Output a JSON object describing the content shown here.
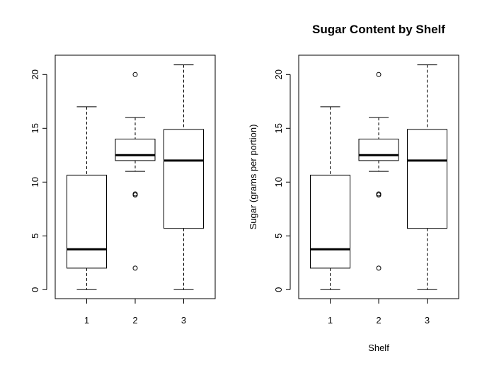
{
  "chart_data": [
    {
      "type": "boxplot",
      "title": "",
      "xlabel": "",
      "ylabel": "",
      "categories": [
        "1",
        "2",
        "3"
      ],
      "ylim": [
        0,
        21
      ],
      "yticks": [
        "0",
        "5",
        "10",
        "15",
        "20"
      ],
      "grid": false,
      "boxes": [
        {
          "min": 0,
          "q1": 2,
          "median": 3.75,
          "q3": 10.65,
          "max": 17,
          "outliers": []
        },
        {
          "min": 11,
          "q1": 12,
          "median": 12.5,
          "q3": 14,
          "max": 16,
          "outliers": [
            20,
            8.9,
            8.8,
            2
          ]
        },
        {
          "min": 0,
          "q1": 5.7,
          "median": 12,
          "q3": 14.9,
          "max": 20.9,
          "outliers": []
        }
      ]
    },
    {
      "type": "boxplot",
      "title": "Sugar Content by Shelf",
      "xlabel": "Shelf",
      "ylabel": "Sugar (grams per portion)",
      "categories": [
        "1",
        "2",
        "3"
      ],
      "ylim": [
        0,
        21
      ],
      "yticks": [
        "0",
        "5",
        "10",
        "15",
        "20"
      ],
      "grid": false,
      "boxes": [
        {
          "min": 0,
          "q1": 2,
          "median": 3.75,
          "q3": 10.65,
          "max": 17,
          "outliers": []
        },
        {
          "min": 11,
          "q1": 12,
          "median": 12.5,
          "q3": 14,
          "max": 16,
          "outliers": [
            20,
            8.9,
            8.8,
            2
          ]
        },
        {
          "min": 0,
          "q1": 5.7,
          "median": 12,
          "q3": 14.9,
          "max": 20.9,
          "outliers": []
        }
      ]
    }
  ]
}
